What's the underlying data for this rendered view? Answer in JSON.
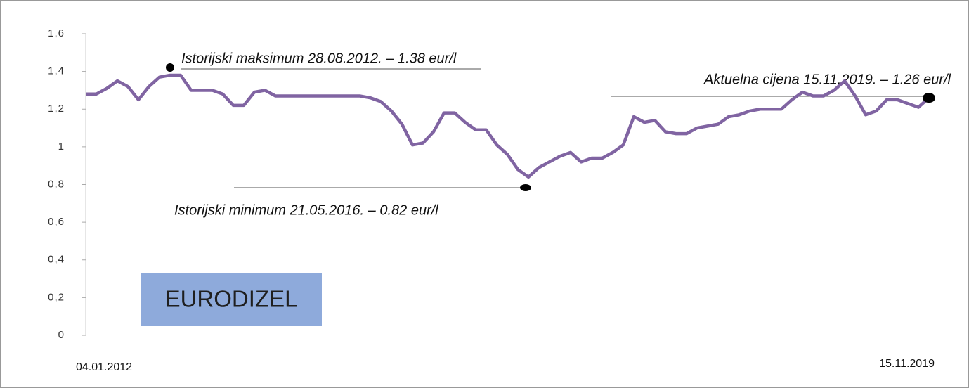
{
  "chart_data": {
    "type": "line",
    "categories": [
      "04.01.2012",
      null,
      null,
      null,
      null,
      null,
      null,
      null,
      null,
      null,
      null,
      null,
      null,
      null,
      null,
      null,
      null,
      null,
      null,
      null,
      null,
      null,
      null,
      null,
      null,
      null,
      null,
      null,
      null,
      null,
      null,
      null,
      null,
      null,
      null,
      null,
      null,
      null,
      null,
      null,
      null,
      null,
      null,
      null,
      null,
      null,
      null,
      null,
      null,
      null,
      null,
      null,
      null,
      null,
      null,
      null,
      null,
      null,
      null,
      null,
      null,
      null,
      null,
      null,
      null,
      null,
      null,
      null,
      null,
      null,
      null,
      null,
      null,
      null,
      null,
      null,
      null,
      null,
      null,
      null,
      "15.11.2019"
    ],
    "series": [
      {
        "color": "#8064a2",
        "values": [
          1.28,
          1.28,
          1.31,
          1.35,
          1.32,
          1.25,
          1.32,
          1.37,
          1.38,
          1.38,
          1.3,
          1.3,
          1.3,
          1.28,
          1.22,
          1.22,
          1.29,
          1.3,
          1.27,
          1.27,
          1.27,
          1.27,
          1.27,
          1.27,
          1.27,
          1.27,
          1.27,
          1.26,
          1.24,
          1.19,
          1.12,
          1.01,
          1.02,
          1.08,
          1.18,
          1.18,
          1.13,
          1.09,
          1.09,
          1.01,
          0.96,
          0.88,
          0.84,
          0.89,
          0.92,
          0.95,
          0.97,
          0.92,
          0.94,
          0.94,
          0.97,
          1.01,
          1.16,
          1.13,
          1.14,
          1.08,
          1.07,
          1.07,
          1.1,
          1.11,
          1.12,
          1.16,
          1.17,
          1.19,
          1.2,
          1.2,
          1.2,
          1.25,
          1.29,
          1.27,
          1.27,
          1.3,
          1.35,
          1.27,
          1.17,
          1.19,
          1.25,
          1.25,
          1.23,
          1.21,
          1.26
        ]
      }
    ],
    "ylim": [
      0,
      1.6
    ],
    "yticks": [
      0,
      {
        "value": 0.2,
        "label": "0,2"
      },
      {
        "value": 0.4,
        "label": "0,4"
      },
      {
        "value": 0.6,
        "label": "0,6"
      },
      {
        "value": 0.8,
        "label": "0,8"
      },
      1,
      {
        "value": 1.2,
        "label": "1,2"
      },
      {
        "value": 1.4,
        "label": "1,4"
      },
      {
        "value": 1.6,
        "label": "1,6"
      }
    ],
    "legend_box": "EURODIZEL",
    "annotations": [
      "Istorijski maksimum 28.08.2012. – 1.38 eur/l",
      "Istorijski minimum 21.05.2016. – 0.82 eur/l",
      "Aktuelna cijena 15.11.2019. – 1.26 eur/l"
    ]
  }
}
